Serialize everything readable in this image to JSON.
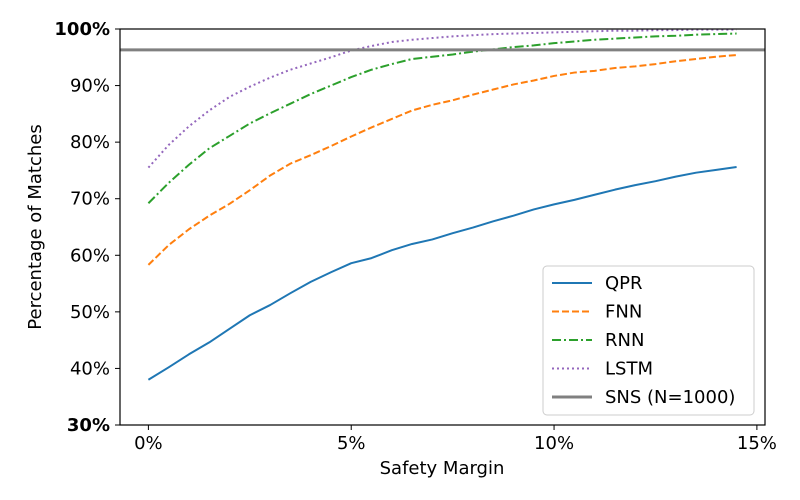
{
  "chart_data": {
    "type": "line",
    "xlabel": "Safety Margin",
    "ylabel": "Percentage of Matches",
    "xlim": [
      -0.7,
      15.2
    ],
    "ylim": [
      30,
      100
    ],
    "x_ticks": [
      {
        "value": 0,
        "label": "0%"
      },
      {
        "value": 5,
        "label": "5%"
      },
      {
        "value": 10,
        "label": "10%"
      },
      {
        "value": 15,
        "label": "15%"
      }
    ],
    "y_ticks": [
      {
        "value": 30,
        "label": "30%",
        "bold": true
      },
      {
        "value": 40,
        "label": "40%"
      },
      {
        "value": 50,
        "label": "50%"
      },
      {
        "value": 60,
        "label": "60%"
      },
      {
        "value": 70,
        "label": "70%"
      },
      {
        "value": 80,
        "label": "80%"
      },
      {
        "value": 90,
        "label": "90%"
      },
      {
        "value": 100,
        "label": "100%",
        "bold": true
      }
    ],
    "grid": false,
    "legend_position": "bottom-right",
    "x": [
      0,
      0.5,
      1,
      1.5,
      2,
      2.5,
      3,
      3.5,
      4,
      4.5,
      5,
      5.5,
      6,
      6.5,
      7,
      7.5,
      8,
      8.5,
      9,
      9.5,
      10,
      10.5,
      11,
      11.5,
      12,
      12.5,
      13,
      13.5,
      14,
      14.5
    ],
    "series": [
      {
        "name": "QPR",
        "color": "#1f77b4",
        "dash": "solid",
        "values": [
          38.0,
          40.2,
          42.5,
          44.6,
          47.0,
          49.4,
          51.2,
          53.3,
          55.3,
          57.0,
          58.6,
          59.5,
          60.9,
          62.0,
          62.8,
          63.9,
          64.9,
          66.0,
          67.0,
          68.1,
          69.0,
          69.8,
          70.7,
          71.6,
          72.4,
          73.1,
          73.9,
          74.6,
          75.1,
          75.6
        ]
      },
      {
        "name": "FNN",
        "color": "#ff7f0e",
        "dash": "dashed",
        "values": [
          58.3,
          61.8,
          64.6,
          67.0,
          69.1,
          71.5,
          74.1,
          76.2,
          77.7,
          79.3,
          81.0,
          82.6,
          84.1,
          85.6,
          86.6,
          87.4,
          88.4,
          89.3,
          90.2,
          90.9,
          91.7,
          92.3,
          92.6,
          93.1,
          93.4,
          93.8,
          94.3,
          94.7,
          95.1,
          95.4
        ]
      },
      {
        "name": "RNN",
        "color": "#2ca02c",
        "dash": "dashdot",
        "values": [
          69.2,
          72.8,
          76.0,
          78.9,
          81.1,
          83.3,
          85.1,
          86.8,
          88.5,
          90.0,
          91.5,
          92.8,
          93.8,
          94.7,
          95.1,
          95.5,
          96.0,
          96.4,
          96.8,
          97.1,
          97.5,
          97.8,
          98.1,
          98.3,
          98.5,
          98.7,
          98.8,
          99.0,
          99.1,
          99.2
        ]
      },
      {
        "name": "LSTM",
        "color": "#9467bd",
        "dash": "dotted",
        "values": [
          75.5,
          79.5,
          82.8,
          85.6,
          88.0,
          89.8,
          91.4,
          92.8,
          93.9,
          95.0,
          96.2,
          97.0,
          97.7,
          98.1,
          98.4,
          98.7,
          98.9,
          99.1,
          99.2,
          99.3,
          99.4,
          99.5,
          99.6,
          99.7,
          99.7,
          99.8,
          99.8,
          99.9,
          99.9,
          99.9
        ]
      }
    ],
    "reference_line": {
      "name": "SNS (N=1000)",
      "color": "#808080",
      "y": 96.3
    }
  }
}
